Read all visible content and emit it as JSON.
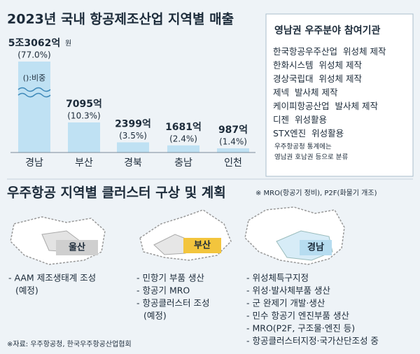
{
  "chart_data": {
    "type": "bar",
    "title": "2023년 국내 항공제조산업 지역별 매출",
    "categories": [
      "경남",
      "부산",
      "경북",
      "충남",
      "인천"
    ],
    "values": [
      53062,
      7095,
      2399,
      1681,
      987
    ],
    "value_labels": [
      "5조3062억",
      "7095억",
      "2399억",
      "1681억",
      "987억"
    ],
    "unit": "원",
    "shares": [
      77.0,
      10.3,
      3.5,
      2.4,
      1.4
    ],
    "share_labels": [
      "(77.0%)",
      "(10.3%)",
      "(3.5%)",
      "(2.4%)",
      "(1.4%)"
    ],
    "annotation": "():비중",
    "color": "#bfe1f3"
  },
  "sidebar": {
    "title": "영남권 우주분야 참여기관",
    "items": [
      {
        "org": "한국항공우주산업",
        "role": "위성체 제작"
      },
      {
        "org": "한화시스템",
        "role": "위성체 제작"
      },
      {
        "org": "경상국립대",
        "role": "위성체 제작"
      },
      {
        "org": "제넥",
        "role": "발사체 제작"
      },
      {
        "org": "케이피항공산업",
        "role": "발사체 제작"
      },
      {
        "org": "디젠",
        "role": "위성활용"
      },
      {
        "org": "STX엔진",
        "role": "위성활용"
      }
    ],
    "note": [
      "우주항공청 통계에는",
      "영남권 호남권 등으로 분류"
    ]
  },
  "clusters": {
    "title": "우주항공 지역별 클러스터 구상 및 계획",
    "note": "※ MRO(항공기 정비), P2F(화물기 개조)",
    "regions": [
      {
        "name": "울산",
        "items": [
          "- AAM 제조생태계 조성",
          "(예정)"
        ]
      },
      {
        "name": "부산",
        "items": [
          "- 민항기 부품 생산",
          "- 항공기 MRO",
          "- 항공클러스터 조성",
          "(예정)"
        ]
      },
      {
        "name": "경남",
        "items": [
          "- 위성체특구지정",
          "- 위성·발사체부품 생산",
          "- 군 완제기 개발·생산",
          "- 민수 항공기 엔진부품 생산",
          "- MRO(P2F, 구조물·엔진 등)",
          "- 항공클러스터지정·국가산단조성 중"
        ]
      }
    ]
  },
  "source": "※자료: 우주항공청, 한국우주항공산업협회"
}
